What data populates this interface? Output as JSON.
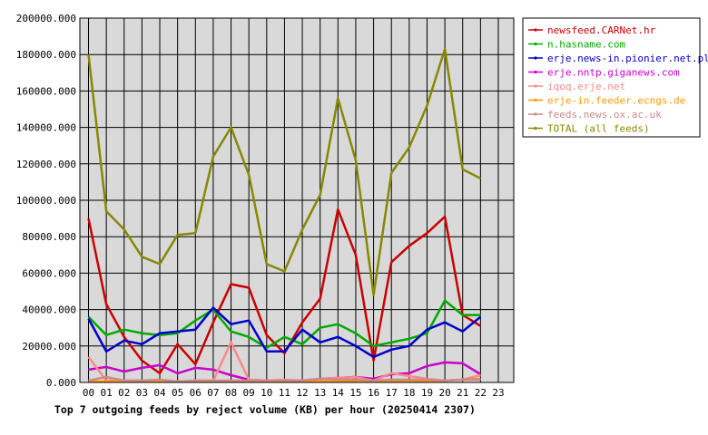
{
  "chart_data": {
    "type": "line",
    "title": "Top 7 outgoing feeds by reject volume (KB) per hour (20250414 2307)",
    "x_ticks": [
      "00",
      "01",
      "02",
      "03",
      "04",
      "05",
      "06",
      "07",
      "08",
      "09",
      "10",
      "11",
      "12",
      "13",
      "14",
      "15",
      "16",
      "17",
      "18",
      "19",
      "20",
      "21",
      "22",
      "23"
    ],
    "y_ticks": [
      "0.000",
      "20000.000",
      "40000.000",
      "60000.000",
      "80000.000",
      "100000.000",
      "120000.000",
      "140000.000",
      "160000.000",
      "180000.000",
      "200000.000"
    ],
    "ylim": [
      0,
      200000
    ],
    "grid": true,
    "legend_position": "right",
    "series": [
      {
        "name": "newsfeed.CARNet.hr",
        "color": "#cc0000",
        "values": [
          90000,
          43000,
          25000,
          12000,
          5000,
          21000,
          10000,
          33000,
          54000,
          52000,
          26000,
          16000,
          33000,
          46000,
          95000,
          70000,
          12000,
          66000,
          75000,
          82000,
          91000,
          37000,
          31000
        ]
      },
      {
        "name": "n.hasname.com",
        "color": "#00aa00",
        "values": [
          36000,
          26000,
          29000,
          27000,
          26000,
          27000,
          34000,
          40000,
          28000,
          25000,
          19000,
          25000,
          21000,
          30000,
          32000,
          27000,
          20000,
          22000,
          24000,
          27000,
          45000,
          37000,
          37000
        ]
      },
      {
        "name": "erje.news-in.pionier.net.pl",
        "color": "#0000cc",
        "values": [
          35000,
          17000,
          23000,
          21000,
          27000,
          28000,
          29000,
          41000,
          32000,
          34000,
          17000,
          17000,
          29000,
          22000,
          25000,
          20000,
          14000,
          18000,
          20000,
          29000,
          33000,
          28000,
          36000
        ]
      },
      {
        "name": "erje.nntp.giganews.com",
        "color": "#cc00cc",
        "values": [
          7000,
          8500,
          6000,
          8000,
          9500,
          5000,
          8000,
          7000,
          4000,
          1500,
          1000,
          1000,
          1000,
          2000,
          2500,
          3000,
          2000,
          4500,
          5000,
          9000,
          11000,
          10500,
          4500
        ]
      },
      {
        "name": "iqoq.erje.net",
        "color": "#ff8888",
        "values": [
          14000,
          1000,
          1000,
          1000,
          500,
          500,
          1000,
          1000,
          22000,
          1500,
          1000,
          1500,
          1000,
          2000,
          2500,
          3000,
          1000,
          5000,
          3500,
          2000,
          1000,
          1500,
          4000
        ]
      },
      {
        "name": "erje-in.feeder.ecngs.de",
        "color": "#ff9900",
        "values": [
          500,
          500,
          500,
          500,
          500,
          500,
          500,
          500,
          500,
          500,
          500,
          500,
          500,
          500,
          500,
          500,
          500,
          1000,
          500,
          500,
          1000,
          1500,
          2000
        ]
      },
      {
        "name": "feeds.news.ox.ac.uk",
        "color": "#cc8888",
        "values": [
          1000,
          3000,
          1000,
          1000,
          1500,
          500,
          1000,
          1000,
          1000,
          1000,
          1000,
          1000,
          1000,
          2000,
          1500,
          1500,
          1000,
          1500,
          1500,
          1500,
          1000,
          1500,
          1500
        ]
      },
      {
        "name": "TOTAL (all feeds)",
        "color": "#888800",
        "values": [
          180000,
          94000,
          84000,
          69000,
          65000,
          81000,
          82000,
          124000,
          140000,
          114000,
          65000,
          61000,
          84000,
          103000,
          156000,
          122000,
          48000,
          115000,
          129000,
          152000,
          183000,
          117000,
          112000
        ]
      }
    ]
  }
}
